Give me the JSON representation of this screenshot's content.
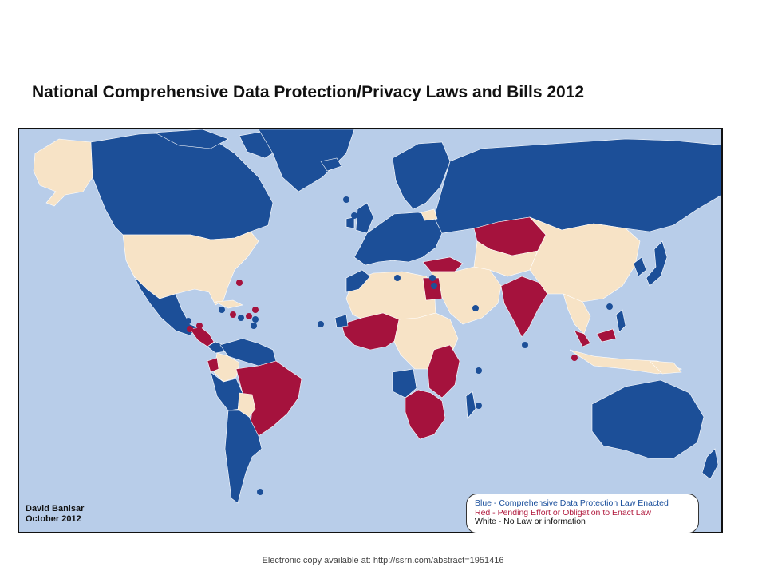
{
  "title": "National Comprehensive Data Protection/Privacy Laws and Bills 2012",
  "map": {
    "colors": {
      "ocean": "#b8cde9",
      "enacted": "#1c4f98",
      "pending": "#a5123d",
      "no_law": "#f7e3c6"
    },
    "author": "David Banisar",
    "date": "October 2012"
  },
  "legend": {
    "enacted": "Blue - Comprehensive Data Protection Law Enacted",
    "pending": "Red -  Pending Effort or Obligation to Enact Law",
    "none": "White - No Law or information"
  },
  "footer": "Electronic copy available at: http://ssrn.com/abstract=1951416"
}
